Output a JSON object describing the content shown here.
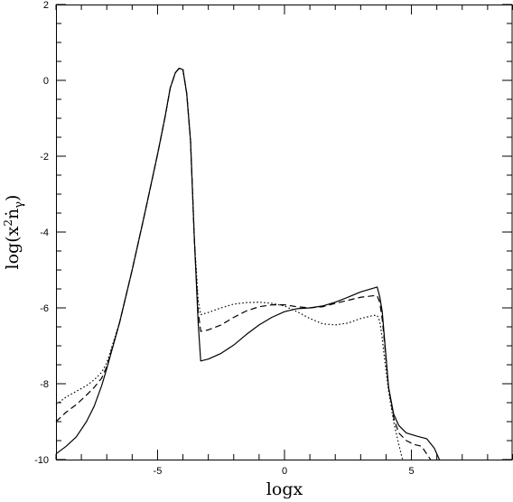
{
  "chart_data": {
    "type": "line",
    "title": "",
    "xlabel": "logx",
    "ylabel_parts": {
      "pre": "log(x",
      "sup": "2",
      "mid": "ṅ",
      "sub": "γ",
      "post": ")"
    },
    "xlim": [
      -9,
      9
    ],
    "ylim": [
      -10,
      2
    ],
    "x_ticks_major": [
      -5,
      0,
      5
    ],
    "x_tick_labels": [
      "-5",
      "0",
      "5"
    ],
    "y_ticks_major": [
      -10,
      -8,
      -6,
      -4,
      -2,
      0,
      2
    ],
    "y_tick_labels": [
      "-10",
      "-8",
      "-6",
      "-4",
      "-2",
      "0",
      "2"
    ],
    "x_minor_step": 1,
    "y_minor_step": 0.5,
    "grid": false,
    "legend": "none",
    "series": [
      {
        "style": "solid",
        "points": [
          [
            -9.0,
            -9.85
          ],
          [
            -8.6,
            -9.65
          ],
          [
            -8.2,
            -9.4
          ],
          [
            -7.8,
            -9.0
          ],
          [
            -7.5,
            -8.6
          ],
          [
            -7.2,
            -8.05
          ],
          [
            -7.0,
            -7.6
          ],
          [
            -6.5,
            -6.4
          ],
          [
            -6.0,
            -5.0
          ],
          [
            -5.5,
            -3.5
          ],
          [
            -5.0,
            -1.95
          ],
          [
            -4.7,
            -0.95
          ],
          [
            -4.5,
            -0.2
          ],
          [
            -4.3,
            0.2
          ],
          [
            -4.15,
            0.32
          ],
          [
            -4.0,
            0.28
          ],
          [
            -3.85,
            -0.35
          ],
          [
            -3.7,
            -1.6
          ],
          [
            -3.55,
            -4.2
          ],
          [
            -3.4,
            -6.4
          ],
          [
            -3.3,
            -7.4
          ],
          [
            -3.0,
            -7.35
          ],
          [
            -2.5,
            -7.2
          ],
          [
            -2.0,
            -6.98
          ],
          [
            -1.5,
            -6.7
          ],
          [
            -1.0,
            -6.45
          ],
          [
            -0.5,
            -6.25
          ],
          [
            0.0,
            -6.1
          ],
          [
            0.5,
            -6.02
          ],
          [
            1.0,
            -6.0
          ],
          [
            1.5,
            -5.95
          ],
          [
            2.0,
            -5.85
          ],
          [
            2.5,
            -5.72
          ],
          [
            3.0,
            -5.58
          ],
          [
            3.5,
            -5.48
          ],
          [
            3.65,
            -5.45
          ],
          [
            3.75,
            -5.7
          ],
          [
            3.85,
            -6.1
          ],
          [
            3.95,
            -6.9
          ],
          [
            4.1,
            -8.1
          ],
          [
            4.3,
            -8.8
          ],
          [
            4.5,
            -9.1
          ],
          [
            4.8,
            -9.3
          ],
          [
            5.2,
            -9.38
          ],
          [
            5.6,
            -9.45
          ],
          [
            5.9,
            -9.7
          ],
          [
            6.1,
            -10.0
          ]
        ]
      },
      {
        "style": "dashed",
        "points": [
          [
            -9.0,
            -9.0
          ],
          [
            -8.6,
            -8.75
          ],
          [
            -8.2,
            -8.55
          ],
          [
            -7.8,
            -8.3
          ],
          [
            -7.5,
            -8.1
          ],
          [
            -7.2,
            -7.85
          ],
          [
            -7.0,
            -7.55
          ],
          [
            -6.5,
            -6.4
          ],
          [
            -6.0,
            -5.0
          ],
          [
            -5.5,
            -3.5
          ],
          [
            -5.0,
            -1.95
          ],
          [
            -4.7,
            -0.95
          ],
          [
            -4.5,
            -0.2
          ],
          [
            -4.3,
            0.2
          ],
          [
            -4.15,
            0.32
          ],
          [
            -4.0,
            0.28
          ],
          [
            -3.85,
            -0.35
          ],
          [
            -3.7,
            -1.6
          ],
          [
            -3.55,
            -4.2
          ],
          [
            -3.4,
            -6.1
          ],
          [
            -3.3,
            -6.62
          ],
          [
            -3.0,
            -6.58
          ],
          [
            -2.5,
            -6.45
          ],
          [
            -2.0,
            -6.25
          ],
          [
            -1.5,
            -6.08
          ],
          [
            -1.0,
            -5.97
          ],
          [
            -0.5,
            -5.92
          ],
          [
            0.0,
            -5.92
          ],
          [
            0.5,
            -5.97
          ],
          [
            1.0,
            -6.0
          ],
          [
            1.5,
            -5.97
          ],
          [
            2.0,
            -5.88
          ],
          [
            2.5,
            -5.8
          ],
          [
            3.0,
            -5.72
          ],
          [
            3.5,
            -5.68
          ],
          [
            3.65,
            -5.68
          ],
          [
            3.75,
            -5.85
          ],
          [
            3.85,
            -6.3
          ],
          [
            3.95,
            -7.0
          ],
          [
            4.1,
            -8.1
          ],
          [
            4.3,
            -8.9
          ],
          [
            4.5,
            -9.3
          ],
          [
            4.8,
            -9.5
          ],
          [
            5.1,
            -9.6
          ],
          [
            5.4,
            -9.65
          ],
          [
            5.6,
            -9.85
          ],
          [
            5.75,
            -10.0
          ]
        ]
      },
      {
        "style": "dotted",
        "points": [
          [
            -9.0,
            -8.55
          ],
          [
            -8.6,
            -8.35
          ],
          [
            -8.2,
            -8.2
          ],
          [
            -7.8,
            -8.05
          ],
          [
            -7.5,
            -7.9
          ],
          [
            -7.2,
            -7.7
          ],
          [
            -7.0,
            -7.45
          ],
          [
            -6.5,
            -6.4
          ],
          [
            -6.0,
            -5.0
          ],
          [
            -5.5,
            -3.5
          ],
          [
            -5.0,
            -1.95
          ],
          [
            -4.7,
            -0.95
          ],
          [
            -4.5,
            -0.2
          ],
          [
            -4.3,
            0.2
          ],
          [
            -4.15,
            0.32
          ],
          [
            -4.0,
            0.28
          ],
          [
            -3.85,
            -0.35
          ],
          [
            -3.7,
            -1.6
          ],
          [
            -3.55,
            -4.2
          ],
          [
            -3.4,
            -5.8
          ],
          [
            -3.3,
            -6.18
          ],
          [
            -3.0,
            -6.12
          ],
          [
            -2.5,
            -6.0
          ],
          [
            -2.0,
            -5.9
          ],
          [
            -1.5,
            -5.86
          ],
          [
            -1.0,
            -5.85
          ],
          [
            -0.5,
            -5.88
          ],
          [
            0.0,
            -5.95
          ],
          [
            0.5,
            -6.1
          ],
          [
            1.0,
            -6.28
          ],
          [
            1.5,
            -6.42
          ],
          [
            2.0,
            -6.45
          ],
          [
            2.5,
            -6.4
          ],
          [
            3.0,
            -6.28
          ],
          [
            3.5,
            -6.2
          ],
          [
            3.65,
            -6.2
          ],
          [
            3.75,
            -6.35
          ],
          [
            3.85,
            -6.8
          ],
          [
            3.95,
            -7.4
          ],
          [
            4.1,
            -8.2
          ],
          [
            4.3,
            -9.0
          ],
          [
            4.5,
            -9.6
          ],
          [
            4.65,
            -10.0
          ]
        ]
      }
    ]
  }
}
